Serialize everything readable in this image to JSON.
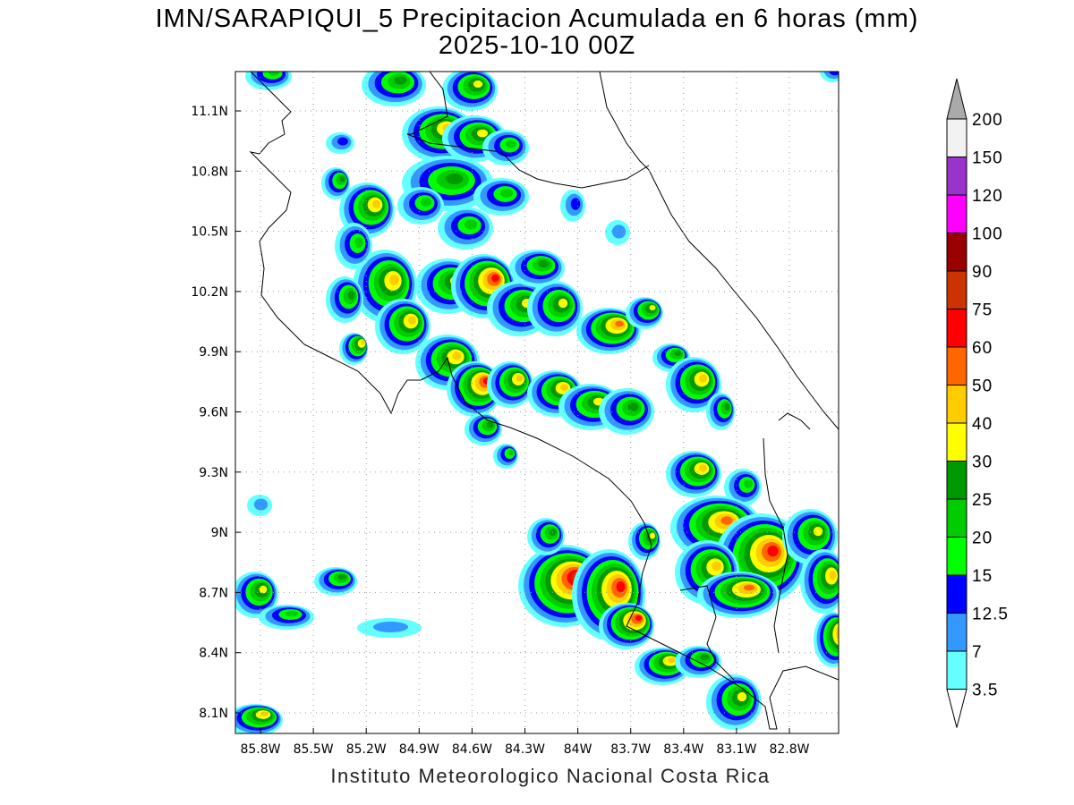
{
  "title": {
    "line1": "IMN/SARAPIQUI_5 Precipitacion Acumulada en 6 horas (mm)",
    "line2": "2025-10-10 00Z"
  },
  "credit": "Instituto Meteorologico Nacional Costa Rica",
  "axes": {
    "lon_ticks": [
      "85.8W",
      "85.5W",
      "85.2W",
      "84.9W",
      "84.6W",
      "84.3W",
      "84W",
      "83.7W",
      "83.4W",
      "83.1W",
      "82.8W"
    ],
    "lat_ticks": [
      "11.1N",
      "10.8N",
      "10.5N",
      "10.2N",
      "9.9N",
      "9.6N",
      "9.3N",
      "9N",
      "8.7N",
      "8.4N",
      "8.1N"
    ],
    "grid": "dotted"
  },
  "colorbar": {
    "labels": [
      "3.5",
      "7",
      "12.5",
      "15",
      "20",
      "25",
      "30",
      "40",
      "50",
      "60",
      "75",
      "90",
      "100",
      "120",
      "150",
      "200"
    ],
    "colors": [
      "#66ffff",
      "#3399ff",
      "#0000ff",
      "#00ff00",
      "#00cc00",
      "#009900",
      "#ffff00",
      "#ffcc00",
      "#ff6600",
      "#ff0000",
      "#cc3300",
      "#990000",
      "#ff00ff",
      "#9933cc",
      "#f2f2f2"
    ],
    "under_color": "#ffffff",
    "over_color": "#aaaaaa"
  }
}
